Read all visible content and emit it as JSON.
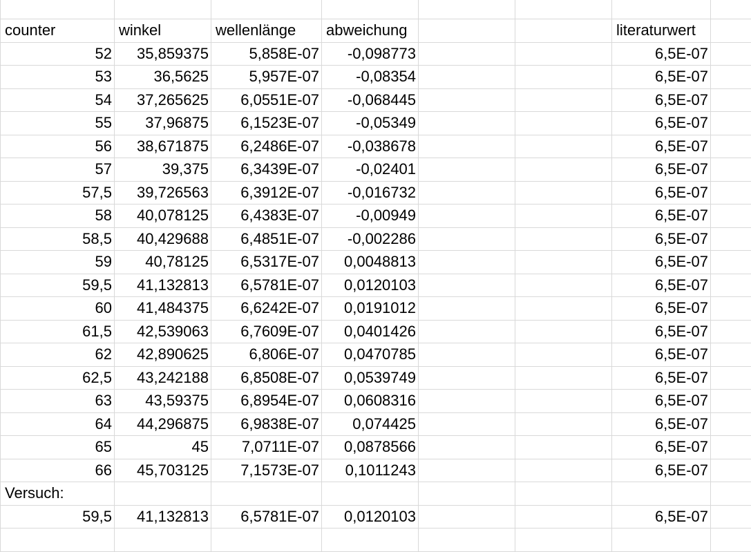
{
  "headers": {
    "counter": "counter",
    "winkel": "winkel",
    "wellenlaenge": "wellenlänge",
    "abweichung": "abweichung",
    "literaturwert": "literaturwert"
  },
  "rows": [
    {
      "counter": "52",
      "winkel": "35,859375",
      "wellenlaenge": "5,858E-07",
      "abweichung": "-0,098773",
      "literaturwert": "6,5E-07"
    },
    {
      "counter": "53",
      "winkel": "36,5625",
      "wellenlaenge": "5,957E-07",
      "abweichung": "-0,08354",
      "literaturwert": "6,5E-07"
    },
    {
      "counter": "54",
      "winkel": "37,265625",
      "wellenlaenge": "6,0551E-07",
      "abweichung": "-0,068445",
      "literaturwert": "6,5E-07"
    },
    {
      "counter": "55",
      "winkel": "37,96875",
      "wellenlaenge": "6,1523E-07",
      "abweichung": "-0,05349",
      "literaturwert": "6,5E-07"
    },
    {
      "counter": "56",
      "winkel": "38,671875",
      "wellenlaenge": "6,2486E-07",
      "abweichung": "-0,038678",
      "literaturwert": "6,5E-07"
    },
    {
      "counter": "57",
      "winkel": "39,375",
      "wellenlaenge": "6,3439E-07",
      "abweichung": "-0,02401",
      "literaturwert": "6,5E-07"
    },
    {
      "counter": "57,5",
      "winkel": "39,726563",
      "wellenlaenge": "6,3912E-07",
      "abweichung": "-0,016732",
      "literaturwert": "6,5E-07"
    },
    {
      "counter": "58",
      "winkel": "40,078125",
      "wellenlaenge": "6,4383E-07",
      "abweichung": "-0,00949",
      "literaturwert": "6,5E-07"
    },
    {
      "counter": "58,5",
      "winkel": "40,429688",
      "wellenlaenge": "6,4851E-07",
      "abweichung": "-0,002286",
      "literaturwert": "6,5E-07"
    },
    {
      "counter": "59",
      "winkel": "40,78125",
      "wellenlaenge": "6,5317E-07",
      "abweichung": "0,0048813",
      "literaturwert": "6,5E-07"
    },
    {
      "counter": "59,5",
      "winkel": "41,132813",
      "wellenlaenge": "6,5781E-07",
      "abweichung": "0,0120103",
      "literaturwert": "6,5E-07"
    },
    {
      "counter": "60",
      "winkel": "41,484375",
      "wellenlaenge": "6,6242E-07",
      "abweichung": "0,0191012",
      "literaturwert": "6,5E-07"
    },
    {
      "counter": "61,5",
      "winkel": "42,539063",
      "wellenlaenge": "6,7609E-07",
      "abweichung": "0,0401426",
      "literaturwert": "6,5E-07"
    },
    {
      "counter": "62",
      "winkel": "42,890625",
      "wellenlaenge": "6,806E-07",
      "abweichung": "0,0470785",
      "literaturwert": "6,5E-07"
    },
    {
      "counter": "62,5",
      "winkel": "43,242188",
      "wellenlaenge": "6,8508E-07",
      "abweichung": "0,0539749",
      "literaturwert": "6,5E-07"
    },
    {
      "counter": "63",
      "winkel": "43,59375",
      "wellenlaenge": "6,8954E-07",
      "abweichung": "0,0608316",
      "literaturwert": "6,5E-07"
    },
    {
      "counter": "64",
      "winkel": "44,296875",
      "wellenlaenge": "6,9838E-07",
      "abweichung": "0,074425",
      "literaturwert": "6,5E-07"
    },
    {
      "counter": "65",
      "winkel": "45",
      "wellenlaenge": "7,0711E-07",
      "abweichung": "0,0878566",
      "literaturwert": "6,5E-07"
    },
    {
      "counter": "66",
      "winkel": "45,703125",
      "wellenlaenge": "7,1573E-07",
      "abweichung": "0,1011243",
      "literaturwert": "6,5E-07"
    }
  ],
  "versuch": {
    "label": "Versuch:",
    "counter": "59,5",
    "winkel": "41,132813",
    "wellenlaenge": "6,5781E-07",
    "abweichung": "0,0120103",
    "literaturwert": "6,5E-07"
  },
  "colors": {
    "gridline": "#d9d9d9",
    "text": "#000000",
    "background": "#ffffff"
  }
}
